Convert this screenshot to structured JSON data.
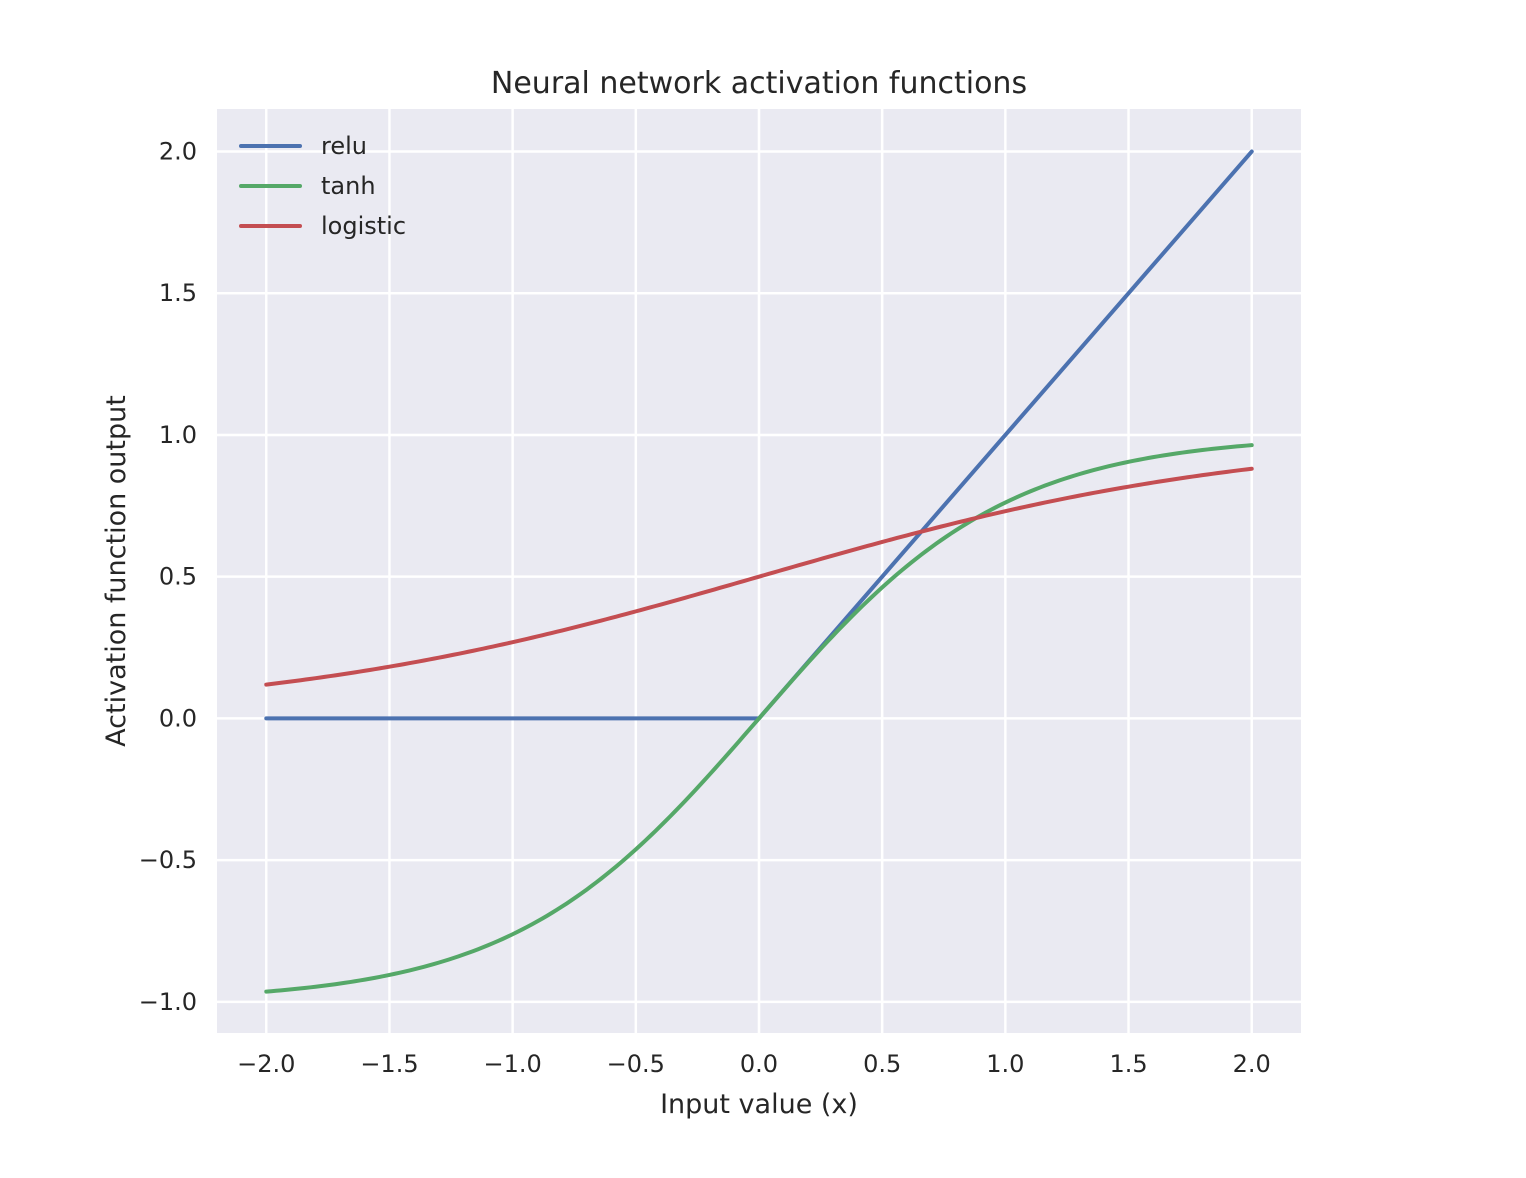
{
  "chart_data": {
    "type": "line",
    "title": "Neural network activation functions",
    "xlabel": "Input value (x)",
    "ylabel": "Activation function output",
    "xlim": [
      -2.2,
      2.2
    ],
    "ylim": [
      -1.11,
      2.15
    ],
    "xticks": [
      -2.0,
      -1.5,
      -1.0,
      -0.5,
      0.0,
      0.5,
      1.0,
      1.5,
      2.0
    ],
    "xtick_labels": [
      "−2.0",
      "−1.5",
      "−1.0",
      "−0.5",
      "0.0",
      "0.5",
      "1.0",
      "1.5",
      "2.0"
    ],
    "yticks": [
      -1.0,
      -0.5,
      0.0,
      0.5,
      1.0,
      1.5,
      2.0
    ],
    "ytick_labels": [
      "−1.0",
      "−0.5",
      "0.0",
      "0.5",
      "1.0",
      "1.5",
      "2.0"
    ],
    "grid": true,
    "legend_position": "top-left",
    "background": "#eaeaf2",
    "x": [
      -2.0,
      -1.8,
      -1.6,
      -1.4,
      -1.2,
      -1.0,
      -0.8,
      -0.6,
      -0.4,
      -0.2,
      0.0,
      0.2,
      0.4,
      0.6,
      0.8,
      1.0,
      1.2,
      1.4,
      1.6,
      1.8,
      2.0
    ],
    "series": [
      {
        "name": "relu",
        "color": "#4c72b0",
        "values": [
          0,
          0,
          0,
          0,
          0,
          0,
          0,
          0,
          0,
          0,
          0,
          0.2,
          0.4,
          0.6,
          0.8,
          1.0,
          1.2,
          1.4,
          1.6,
          1.8,
          2.0
        ]
      },
      {
        "name": "tanh",
        "color": "#55a868",
        "values": [
          -0.964,
          -0.947,
          -0.922,
          -0.885,
          -0.834,
          -0.762,
          -0.664,
          -0.537,
          -0.38,
          -0.197,
          0.0,
          0.197,
          0.38,
          0.537,
          0.664,
          0.762,
          0.834,
          0.885,
          0.922,
          0.947,
          0.964
        ]
      },
      {
        "name": "logistic",
        "color": "#c44e52",
        "values": [
          0.119,
          0.142,
          0.168,
          0.198,
          0.231,
          0.269,
          0.31,
          0.354,
          0.401,
          0.45,
          0.5,
          0.55,
          0.599,
          0.646,
          0.69,
          0.731,
          0.769,
          0.802,
          0.832,
          0.858,
          0.881
        ]
      }
    ]
  }
}
